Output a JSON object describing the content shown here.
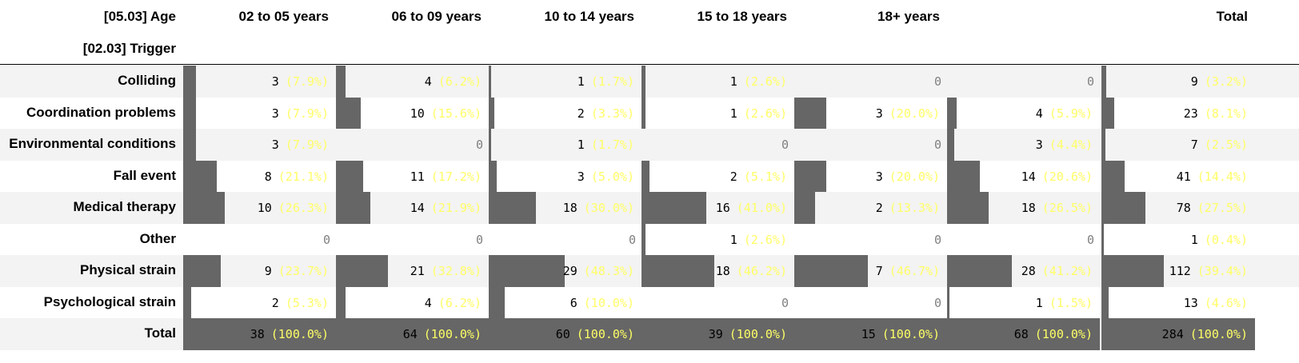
{
  "chart_data": {
    "type": "table",
    "column_header_label": "[05.03] Age",
    "row_header_label": "[02.03] Trigger",
    "columns": [
      "02 to 05 years",
      "06 to 09 years",
      "10 to 14 years",
      "15 to 18 years",
      "18+ years",
      "",
      "Total"
    ],
    "rows": [
      {
        "label": "Colliding",
        "counts": [
          3,
          4,
          1,
          1,
          0,
          0,
          9
        ],
        "percents": [
          "7.9%",
          "6.2%",
          "1.7%",
          "2.6%",
          "",
          "",
          "3.2%"
        ]
      },
      {
        "label": "Coordination problems",
        "counts": [
          3,
          10,
          2,
          1,
          3,
          4,
          23
        ],
        "percents": [
          "7.9%",
          "15.6%",
          "3.3%",
          "2.6%",
          "20.0%",
          "5.9%",
          "8.1%"
        ]
      },
      {
        "label": "Environmental conditions",
        "counts": [
          3,
          0,
          1,
          0,
          0,
          3,
          7
        ],
        "percents": [
          "7.9%",
          "",
          "1.7%",
          "",
          "",
          "4.4%",
          "2.5%"
        ]
      },
      {
        "label": "Fall event",
        "counts": [
          8,
          11,
          3,
          2,
          3,
          14,
          41
        ],
        "percents": [
          "21.1%",
          "17.2%",
          "5.0%",
          "5.1%",
          "20.0%",
          "20.6%",
          "14.4%"
        ]
      },
      {
        "label": "Medical therapy",
        "counts": [
          10,
          14,
          18,
          16,
          2,
          18,
          78
        ],
        "percents": [
          "26.3%",
          "21.9%",
          "30.0%",
          "41.0%",
          "13.3%",
          "26.5%",
          "27.5%"
        ]
      },
      {
        "label": "Other",
        "counts": [
          0,
          0,
          0,
          1,
          0,
          0,
          1
        ],
        "percents": [
          "",
          "",
          "",
          "2.6%",
          "",
          "",
          "0.4%"
        ]
      },
      {
        "label": "Physical strain",
        "counts": [
          9,
          21,
          29,
          18,
          7,
          28,
          112
        ],
        "percents": [
          "23.7%",
          "32.8%",
          "48.3%",
          "46.2%",
          "46.7%",
          "41.2%",
          "39.4%"
        ]
      },
      {
        "label": "Psychological strain",
        "counts": [
          2,
          4,
          6,
          0,
          0,
          1,
          13
        ],
        "percents": [
          "5.3%",
          "6.2%",
          "10.0%",
          "",
          "",
          "1.5%",
          "4.6%"
        ]
      }
    ],
    "total_row": {
      "label": "Total",
      "counts": [
        38,
        64,
        60,
        39,
        15,
        68,
        284
      ],
      "percents": [
        "100.0%",
        "100.0%",
        "100.0%",
        "100.0%",
        "100.0%",
        "100.0%",
        "100.0%"
      ]
    }
  },
  "colors": {
    "bar": "#666666",
    "percent_text": "#ffff66",
    "row_stripe": "#f3f3f3",
    "zero_text": "#808080"
  }
}
